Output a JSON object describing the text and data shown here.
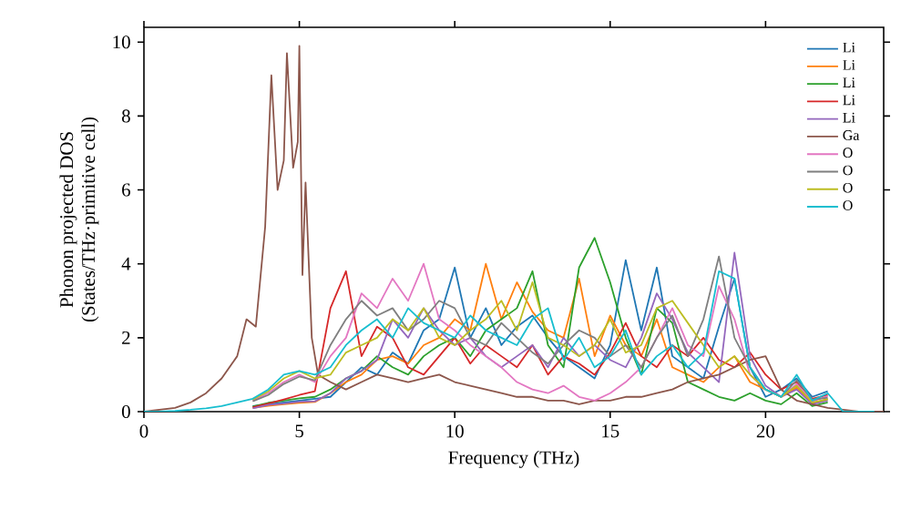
{
  "chart_data": {
    "type": "line",
    "xlabel": "Frequency (THz)",
    "ylabel": "Phonon projected DOS\n(States/THz·primitive cell)",
    "xlim": [
      0,
      23.8
    ],
    "ylim": [
      0,
      10.4
    ],
    "xticks": [
      0,
      5,
      10,
      15,
      20
    ],
    "yticks": [
      0,
      2,
      4,
      6,
      8,
      10
    ],
    "grid": false,
    "legend": "top right",
    "marker": "none",
    "line_style": "solid",
    "x": [
      0,
      0.5,
      1,
      1.5,
      2,
      2.5,
      3,
      3.5,
      4,
      4.5,
      5,
      5.5,
      6,
      6.5,
      7,
      7.5,
      8,
      8.5,
      9,
      9.5,
      10,
      10.5,
      11,
      11.5,
      12,
      12.5,
      13,
      13.5,
      14,
      14.5,
      15,
      15.5,
      16,
      16.5,
      17,
      17.5,
      18,
      18.5,
      19,
      19.5,
      20,
      20.5,
      21,
      21.5,
      22,
      22.5,
      23,
      23.5
    ],
    "series": [
      {
        "name": "Li",
        "color": "#1f77b4",
        "values": [
          null,
          null,
          null,
          null,
          null,
          null,
          null,
          0.15,
          0.2,
          0.25,
          0.3,
          0.35,
          0.4,
          0.8,
          1.2,
          1.0,
          1.6,
          1.3,
          2.2,
          2.5,
          3.9,
          2.0,
          2.8,
          1.8,
          2.3,
          2.6,
          2.0,
          1.5,
          1.2,
          0.9,
          1.8,
          4.1,
          2.2,
          3.9,
          1.5,
          1.2,
          0.9,
          2.3,
          3.6,
          1.2,
          0.4,
          0.6,
          0.9,
          0.4,
          0.55,
          null,
          null,
          null
        ]
      },
      {
        "name": "Li",
        "color": "#ff7f0e",
        "values": [
          null,
          null,
          null,
          null,
          null,
          null,
          null,
          0.1,
          0.16,
          0.2,
          0.24,
          0.26,
          0.5,
          0.8,
          1.0,
          1.4,
          1.5,
          1.3,
          1.8,
          2.0,
          2.5,
          2.2,
          4.0,
          2.5,
          3.5,
          2.7,
          2.2,
          2.0,
          3.6,
          1.5,
          2.6,
          1.8,
          1.5,
          2.5,
          1.2,
          1.0,
          0.8,
          1.2,
          1.5,
          0.8,
          0.6,
          0.4,
          0.65,
          0.22,
          0.35,
          null,
          null,
          null
        ]
      },
      {
        "name": "Li",
        "color": "#2ca02c",
        "values": [
          null,
          null,
          null,
          null,
          null,
          null,
          null,
          0.14,
          0.24,
          0.3,
          0.36,
          0.4,
          0.6,
          0.9,
          1.1,
          1.5,
          1.2,
          1.0,
          1.5,
          1.8,
          2.0,
          1.5,
          2.2,
          2.5,
          2.8,
          3.8,
          1.8,
          1.2,
          3.9,
          4.7,
          3.5,
          2.0,
          1.0,
          2.8,
          2.4,
          0.8,
          0.6,
          0.4,
          0.3,
          0.5,
          0.3,
          0.2,
          0.5,
          0.15,
          0.25,
          null,
          null,
          null
        ]
      },
      {
        "name": "Li",
        "color": "#d62728",
        "values": [
          null,
          null,
          null,
          null,
          null,
          null,
          null,
          0.12,
          0.22,
          0.33,
          0.45,
          0.55,
          2.8,
          3.8,
          1.5,
          2.3,
          2.0,
          1.2,
          1.0,
          1.5,
          2.0,
          1.3,
          1.8,
          1.5,
          1.2,
          1.8,
          1.0,
          1.5,
          1.3,
          1.0,
          1.6,
          2.4,
          1.5,
          1.2,
          1.8,
          1.5,
          2.0,
          1.4,
          1.2,
          1.6,
          1.0,
          0.6,
          0.8,
          0.35,
          0.45,
          null,
          null,
          null
        ]
      },
      {
        "name": "Li",
        "color": "#9467bd",
        "values": [
          null,
          null,
          null,
          null,
          null,
          null,
          null,
          0.09,
          0.18,
          0.22,
          0.27,
          0.28,
          0.5,
          0.9,
          1.1,
          1.4,
          2.5,
          2.0,
          2.8,
          2.2,
          1.8,
          2.0,
          1.5,
          1.2,
          1.5,
          1.8,
          1.2,
          2.0,
          1.5,
          1.8,
          1.4,
          1.2,
          2.0,
          3.2,
          2.5,
          1.6,
          1.2,
          0.8,
          4.3,
          1.5,
          0.7,
          0.4,
          0.6,
          0.2,
          0.3,
          null,
          null,
          null
        ]
      },
      {
        "name": "Ga",
        "color": "#8c564b",
        "x": [
          0,
          1,
          1.5,
          2,
          2.5,
          3,
          3.3,
          3.6,
          3.9,
          4.1,
          4.3,
          4.5,
          4.6,
          4.8,
          4.95,
          5.0,
          5.1,
          5.2,
          5.4,
          5.6,
          6,
          6.5,
          7,
          7.5,
          8,
          8.5,
          9,
          9.5,
          10,
          10.5,
          11,
          11.5,
          12,
          12.5,
          13,
          13.5,
          14,
          14.5,
          15,
          15.5,
          16,
          16.5,
          17,
          17.5,
          18,
          18.5,
          19,
          19.5,
          20,
          20.5,
          21,
          21.5,
          22,
          22.5,
          23,
          23.8
        ],
        "values": [
          0,
          0.1,
          0.25,
          0.5,
          0.9,
          1.5,
          2.5,
          2.3,
          5.0,
          9.1,
          6.0,
          6.8,
          9.7,
          6.6,
          7.3,
          9.9,
          3.7,
          6.2,
          2.0,
          1.0,
          0.8,
          0.6,
          0.8,
          1.0,
          0.9,
          0.8,
          0.9,
          1.0,
          0.8,
          0.7,
          0.6,
          0.5,
          0.4,
          0.4,
          0.3,
          0.3,
          0.2,
          0.3,
          0.3,
          0.4,
          0.4,
          0.5,
          0.6,
          0.8,
          0.9,
          1.0,
          1.2,
          1.4,
          1.5,
          0.6,
          0.3,
          0.2,
          0.1,
          0.05,
          0,
          0
        ]
      },
      {
        "name": "O",
        "color": "#e377c2",
        "values": [
          null,
          null,
          null,
          null,
          null,
          null,
          null,
          0.3,
          0.5,
          0.8,
          1.0,
          0.8,
          1.5,
          2.0,
          3.2,
          2.8,
          3.6,
          3.0,
          4.0,
          2.5,
          2.2,
          1.8,
          1.5,
          1.2,
          0.8,
          0.6,
          0.5,
          0.7,
          0.4,
          0.3,
          0.5,
          0.8,
          1.2,
          2.0,
          2.8,
          1.8,
          1.5,
          3.4,
          2.5,
          1.0,
          0.6,
          0.4,
          0.75,
          0.28,
          0.42,
          null,
          null,
          null
        ]
      },
      {
        "name": "O",
        "color": "#7f7f7f",
        "values": [
          null,
          null,
          null,
          null,
          null,
          null,
          null,
          0.28,
          0.45,
          0.75,
          0.95,
          0.85,
          1.8,
          2.5,
          3.0,
          2.6,
          2.8,
          2.2,
          2.5,
          3.0,
          2.8,
          2.0,
          1.8,
          2.4,
          2.0,
          1.6,
          1.3,
          1.8,
          2.2,
          2.0,
          1.5,
          1.8,
          1.2,
          2.0,
          2.6,
          1.5,
          2.5,
          4.2,
          2.0,
          1.2,
          0.6,
          0.4,
          0.85,
          0.32,
          0.38,
          null,
          null,
          null
        ]
      },
      {
        "name": "O",
        "color": "#bcbd22",
        "values": [
          null,
          null,
          null,
          null,
          null,
          null,
          null,
          0.33,
          0.55,
          0.9,
          1.1,
          0.9,
          1.0,
          1.6,
          1.8,
          2.0,
          2.5,
          2.2,
          2.8,
          2.0,
          1.8,
          2.2,
          2.5,
          3.0,
          2.2,
          3.5,
          2.0,
          1.8,
          1.5,
          1.8,
          2.5,
          1.6,
          1.8,
          2.8,
          3.0,
          2.4,
          1.8,
          1.2,
          1.5,
          1.0,
          0.6,
          0.4,
          0.7,
          0.25,
          0.33,
          null,
          null,
          null
        ]
      },
      {
        "name": "O",
        "color": "#17becf",
        "values": [
          0,
          0,
          0.02,
          0.05,
          0.09,
          0.15,
          0.25,
          0.35,
          0.6,
          1.0,
          1.1,
          1.0,
          1.2,
          1.8,
          2.2,
          2.5,
          2.0,
          2.8,
          2.4,
          2.2,
          2.0,
          2.6,
          2.2,
          2.0,
          1.8,
          2.5,
          2.8,
          1.4,
          2.0,
          1.2,
          1.5,
          2.2,
          1.0,
          1.5,
          1.8,
          1.2,
          1.6,
          3.8,
          3.6,
          1.2,
          0.6,
          0.4,
          1.0,
          0.3,
          0.5,
          0,
          0,
          0
        ]
      }
    ]
  }
}
